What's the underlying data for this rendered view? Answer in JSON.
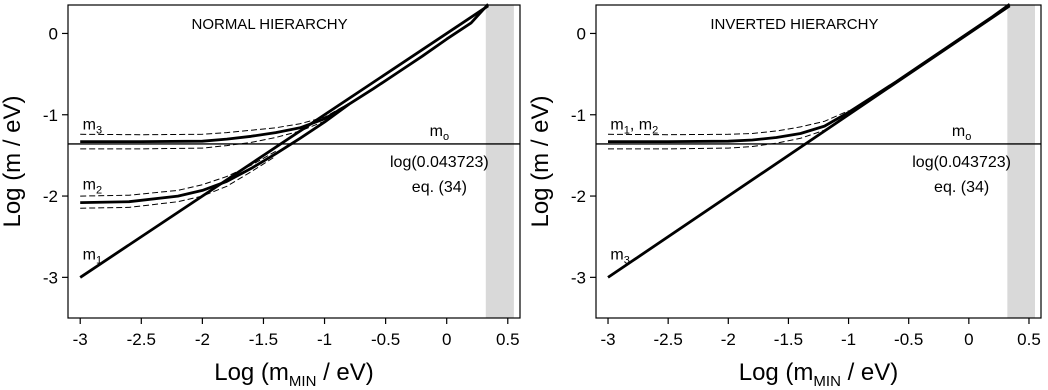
{
  "chart_data": [
    {
      "type": "line",
      "title": "NORMAL HIERARCHY",
      "xlabel": "Log (m",
      "xlabel_sub": "MIN",
      "xlabel_end": " / eV)",
      "ylabel": "Log (m / eV)",
      "xlim": [
        -3.1,
        0.6
      ],
      "ylim": [
        -3.5,
        0.35
      ],
      "xticks": [
        -3,
        -2.5,
        -2,
        -1.5,
        -1,
        -0.5,
        0,
        0.5
      ],
      "xtick_labels": [
        "-3",
        "-2.5",
        "-2",
        "-1.5",
        "-1",
        "-0.5",
        "0",
        "0.5"
      ],
      "yticks": [
        -3,
        -2,
        -1,
        0
      ],
      "ytick_labels": [
        "-3",
        "-2",
        "-1",
        "0"
      ],
      "shaded_band": [
        0.32,
        0.55
      ],
      "hline": {
        "y": -1.359,
        "label": "m",
        "label_sub": "o",
        "annotation_line1": "log(0.043723)",
        "annotation_line2": "eq. (34)"
      },
      "series": [
        {
          "name": "m3",
          "label": "m",
          "label_sub": "3",
          "style": "solid",
          "x": [
            -3.0,
            -2.5,
            -2.0,
            -1.8,
            -1.6,
            -1.4,
            -1.2,
            -1.0,
            -0.8,
            -0.6,
            -0.4,
            -0.2,
            0.0,
            0.2,
            0.34
          ],
          "y": [
            -1.33,
            -1.33,
            -1.325,
            -1.3,
            -1.265,
            -1.22,
            -1.16,
            -1.05,
            -0.87,
            -0.68,
            -0.48,
            -0.28,
            -0.07,
            0.13,
            0.36
          ]
        },
        {
          "name": "m3-upper",
          "style": "dashed",
          "x": [
            -3.0,
            -2.5,
            -2.0,
            -1.8,
            -1.6,
            -1.4,
            -1.2,
            -1.0,
            -0.8
          ],
          "y": [
            -1.24,
            -1.245,
            -1.24,
            -1.22,
            -1.19,
            -1.16,
            -1.11,
            -1.03,
            -0.86
          ]
        },
        {
          "name": "m3-lower",
          "style": "dashed",
          "x": [
            -3.0,
            -2.5,
            -2.0,
            -1.8,
            -1.6,
            -1.4,
            -1.2,
            -1.0,
            -0.8
          ],
          "y": [
            -1.42,
            -1.42,
            -1.41,
            -1.38,
            -1.34,
            -1.28,
            -1.2,
            -1.08,
            -0.88
          ]
        },
        {
          "name": "m2",
          "label": "m",
          "label_sub": "2",
          "style": "solid",
          "x": [
            -3.0,
            -2.6,
            -2.2,
            -2.0,
            -1.8,
            -1.6,
            -1.4,
            -1.2,
            -1.0,
            -0.8
          ],
          "y": [
            -2.08,
            -2.07,
            -2.0,
            -1.93,
            -1.82,
            -1.66,
            -1.48,
            -1.29,
            -1.09,
            -0.87
          ]
        },
        {
          "name": "m2-upper",
          "style": "dashed",
          "x": [
            -3.0,
            -2.6,
            -2.2,
            -2.0,
            -1.8,
            -1.6,
            -1.4
          ],
          "y": [
            -2.0,
            -1.99,
            -1.93,
            -1.86,
            -1.76,
            -1.62,
            -1.45
          ]
        },
        {
          "name": "m2-lower",
          "style": "dashed",
          "x": [
            -3.0,
            -2.6,
            -2.2,
            -2.0,
            -1.8,
            -1.6,
            -1.4
          ],
          "y": [
            -2.15,
            -2.14,
            -2.07,
            -2.0,
            -1.88,
            -1.7,
            -1.51
          ]
        },
        {
          "name": "m1",
          "label": "m",
          "label_sub": "1",
          "style": "solid",
          "x": [
            -3.0,
            0.34
          ],
          "y": [
            -3.0,
            0.34
          ]
        }
      ]
    },
    {
      "type": "line",
      "title": "INVERTED HIERARCHY",
      "xlabel": "Log (m",
      "xlabel_sub": "MIN",
      "xlabel_end": " / eV)",
      "ylabel": "Log (m / eV)",
      "xlim": [
        -3.1,
        0.6
      ],
      "ylim": [
        -3.5,
        0.35
      ],
      "xticks": [
        -3,
        -2.5,
        -2,
        -1.5,
        -1,
        -0.5,
        0,
        0.5
      ],
      "xtick_labels": [
        "-3",
        "-2.5",
        "-2",
        "-1.5",
        "-1",
        "-0.5",
        "0",
        "0.5"
      ],
      "yticks": [
        -3,
        -2,
        -1,
        0
      ],
      "ytick_labels": [
        "-3",
        "-2",
        "-1",
        "0"
      ],
      "shaded_band": [
        0.32,
        0.55
      ],
      "hline": {
        "y": -1.359,
        "label": "m",
        "label_sub": "o",
        "annotation_line1": "log(0.043723)",
        "annotation_line2": "eq. (34)"
      },
      "series": [
        {
          "name": "m1, m2",
          "label": "m",
          "label_sub": "1",
          "label_mid": ", m",
          "label_sub2": "2",
          "style": "solid",
          "x": [
            -3.0,
            -2.5,
            -2.0,
            -1.8,
            -1.6,
            -1.4,
            -1.2,
            -1.0,
            -0.8,
            -0.6,
            -0.4,
            -0.2,
            0.0,
            0.2,
            0.34
          ],
          "y": [
            -1.33,
            -1.33,
            -1.325,
            -1.31,
            -1.28,
            -1.23,
            -1.14,
            -0.97,
            -0.78,
            -0.59,
            -0.39,
            -0.19,
            0.01,
            0.21,
            0.36
          ]
        },
        {
          "name": "m12-upper",
          "style": "dashed",
          "x": [
            -3.0,
            -2.5,
            -2.0,
            -1.8,
            -1.6,
            -1.4,
            -1.2,
            -1.0
          ],
          "y": [
            -1.24,
            -1.245,
            -1.24,
            -1.23,
            -1.2,
            -1.15,
            -1.08,
            -0.95
          ]
        },
        {
          "name": "m12-lower",
          "style": "dashed",
          "x": [
            -3.0,
            -2.5,
            -2.0,
            -1.8,
            -1.6,
            -1.4,
            -1.2,
            -1.0
          ],
          "y": [
            -1.42,
            -1.42,
            -1.41,
            -1.39,
            -1.35,
            -1.29,
            -1.19,
            -0.99
          ]
        },
        {
          "name": "m3",
          "label": "m",
          "label_sub": "3",
          "style": "solid",
          "x": [
            -3.0,
            0.34
          ],
          "y": [
            -3.0,
            0.34
          ]
        }
      ]
    }
  ]
}
